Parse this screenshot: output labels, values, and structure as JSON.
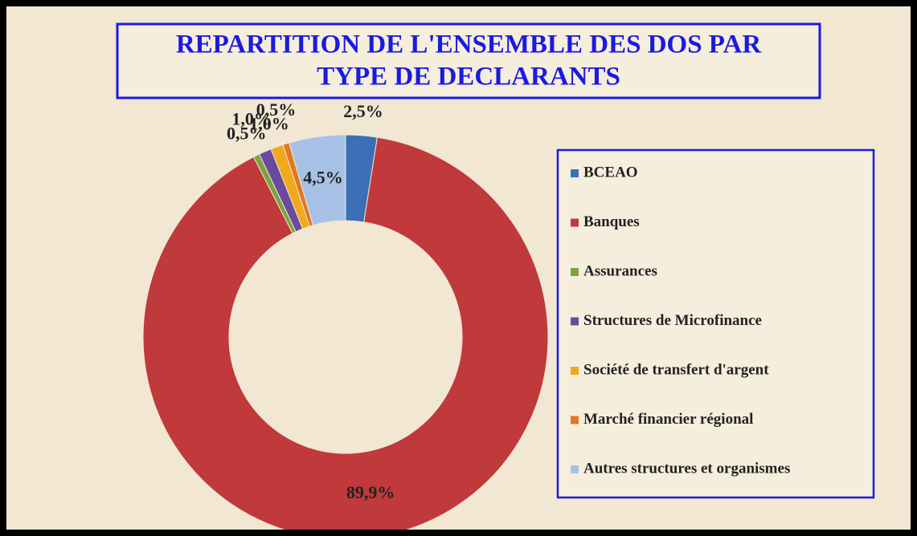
{
  "chart_data": {
    "type": "donut",
    "title": [
      "REPARTITION DE  L'ENSEMBLE DES DOS PAR",
      "TYPE DE DECLARANTS"
    ],
    "categories": [
      "BCEAO",
      "Banques",
      "Assurances",
      "Structures de Microfinance",
      "Société de transfert d'argent",
      "Marché financier régional",
      "Autres structures et organismes"
    ],
    "values": [
      2.5,
      89.9,
      0.5,
      1.0,
      1.0,
      0.5,
      4.5
    ],
    "value_labels": [
      "2,5%",
      "89,9%",
      "0,5%",
      "1,0%",
      "1,0%",
      "0,5%",
      "4,5%"
    ],
    "colors": [
      "#3b6fb6",
      "#c0393b",
      "#7ea33e",
      "#6a4a9e",
      "#f0a81e",
      "#e2781f",
      "#a7c1e6"
    ],
    "legend": "right"
  }
}
